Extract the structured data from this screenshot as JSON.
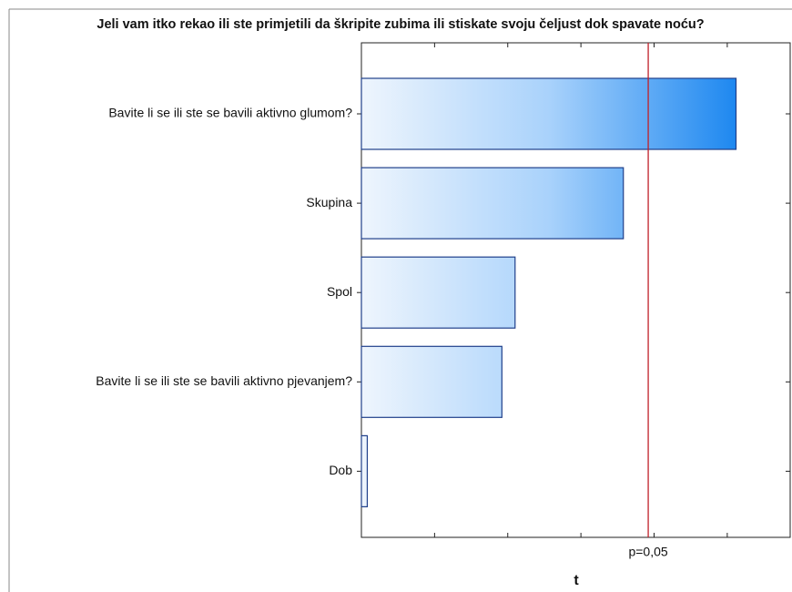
{
  "chart_data": {
    "type": "bar",
    "orientation": "horizontal",
    "title": "Jeli vam itko rekao ili ste primjetili da škripite zubima ili stiskate svoju čeljust dok spavate noću?",
    "xlabel": "t",
    "categories": [
      "Bavite li se ili ste se bavili aktivno glumom?",
      "Skupina",
      "Spol",
      "Bavite li se ili ste se bavili aktivno pjevanjem?",
      "Dob"
    ],
    "values": [
      2.56,
      1.79,
      1.05,
      0.96,
      0.04
    ],
    "color": "#1e88f0",
    "xlim": [
      0,
      2.93
    ],
    "xticks": [
      0.5,
      1,
      1.5,
      2,
      2.5
    ],
    "reference_line": {
      "value": 1.96,
      "label": "p=0,05",
      "color": "#c0202a"
    }
  }
}
